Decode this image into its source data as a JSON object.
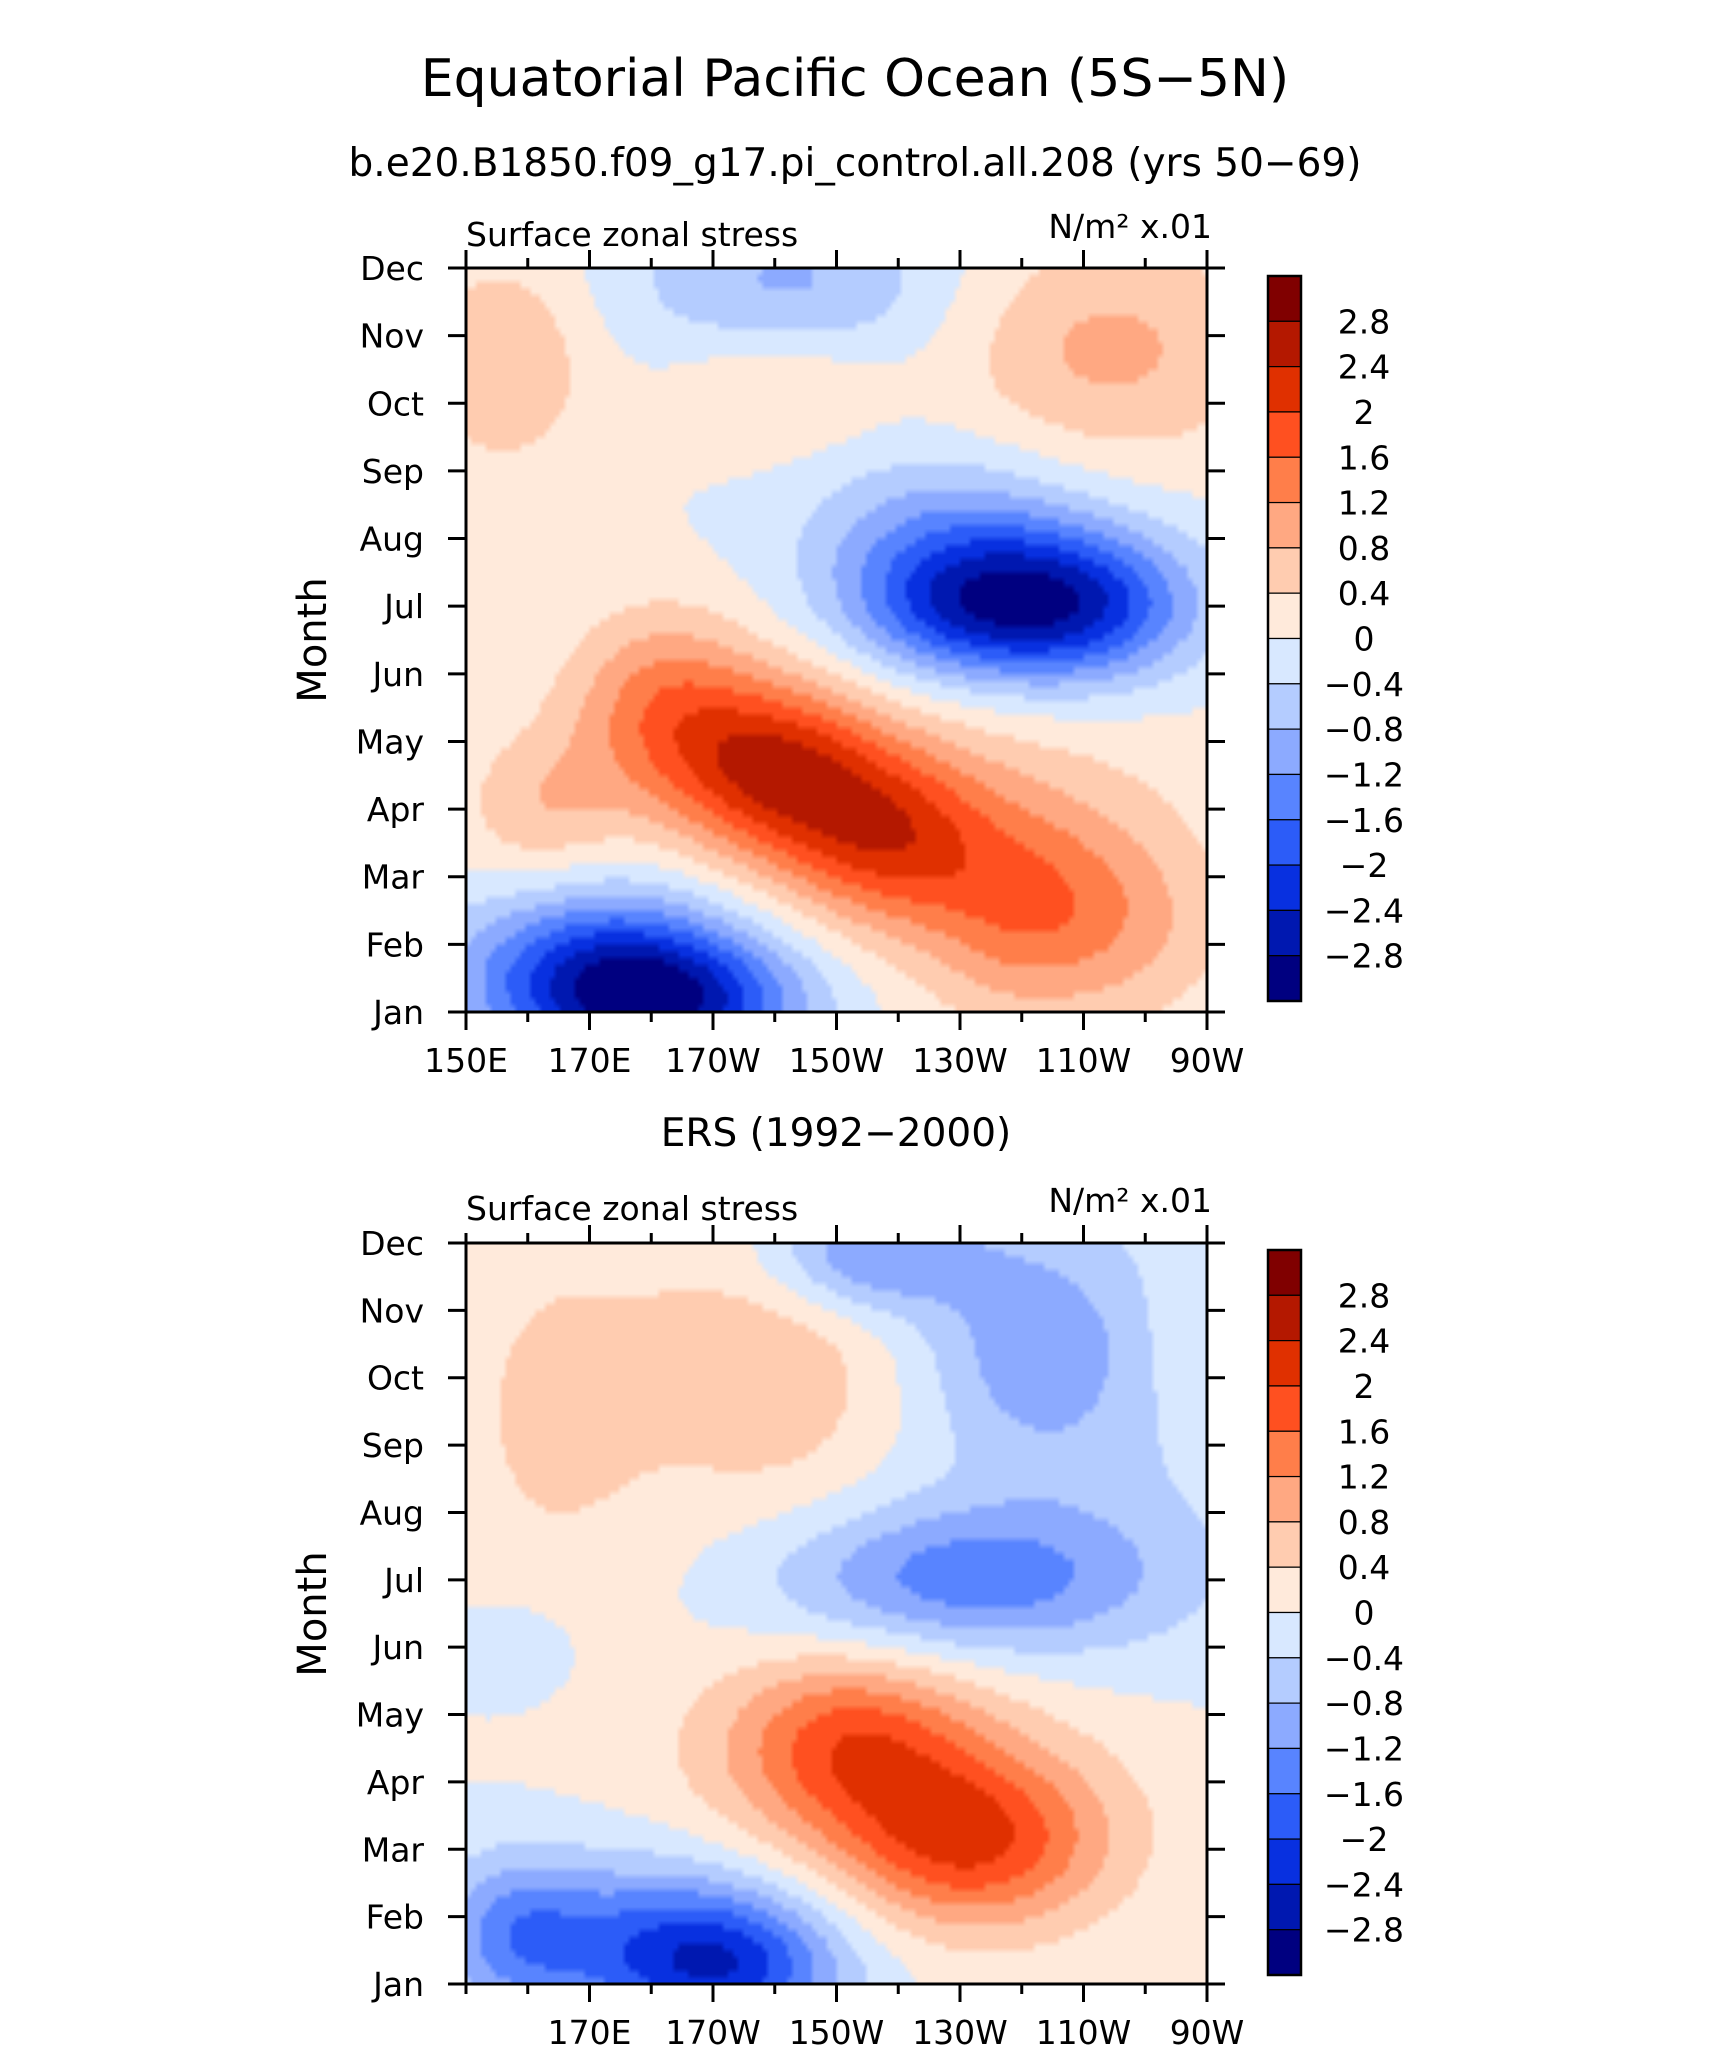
{
  "figure": {
    "title": "Equatorial Pacific Ocean (5S−5N)",
    "subtitle": "b.e20.B1850.f09_g17.pi_control.all.208 (yrs 50−69)"
  },
  "chart_data": [
    {
      "type": "heatmap",
      "title": "",
      "left_label": "Surface zonal stress",
      "units_label": "N/m² x.01",
      "xlabel": "",
      "ylabel": "Month",
      "x_tick_labels": [
        "150E",
        "170E",
        "170W",
        "150W",
        "130W",
        "110W",
        "90W"
      ],
      "x_tick_lons": [
        150,
        170,
        190,
        210,
        230,
        250,
        270
      ],
      "xlim": [
        150,
        270
      ],
      "y_tick_labels": [
        "Jan",
        "Feb",
        "Mar",
        "Apr",
        "May",
        "Jun",
        "Jul",
        "Aug",
        "Sep",
        "Oct",
        "Nov",
        "Dec"
      ],
      "ylim": [
        1,
        12
      ],
      "contour_levels": [
        -2.8,
        -2.4,
        -2,
        -1.6,
        -1.2,
        -0.8,
        -0.4,
        0,
        0.4,
        0.8,
        1.2,
        1.6,
        2,
        2.4,
        2.8
      ],
      "features": [
        {
          "lon": 172,
          "month": 1.5,
          "value": -2.3,
          "sx": 16,
          "sy": 0.9
        },
        {
          "lon": 186,
          "month": 1.1,
          "value": -1.6,
          "sx": 14,
          "sy": 0.7
        },
        {
          "lon": 162,
          "month": 4.0,
          "value": 0.7,
          "sx": 9,
          "sy": 0.8
        },
        {
          "lon": 182,
          "month": 5.5,
          "value": 1.3,
          "sx": 11,
          "sy": 1.0
        },
        {
          "lon": 200,
          "month": 4.6,
          "value": 2.0,
          "sx": 12,
          "sy": 0.9
        },
        {
          "lon": 218,
          "month": 3.6,
          "value": 1.7,
          "sx": 12,
          "sy": 0.9
        },
        {
          "lon": 242,
          "month": 2.5,
          "value": 1.4,
          "sx": 13,
          "sy": 1.1
        },
        {
          "lon": 262,
          "month": 2.2,
          "value": 0.4,
          "sx": 10,
          "sy": 1.0
        },
        {
          "lon": 228,
          "month": 7.8,
          "value": -1.2,
          "sx": 16,
          "sy": 1.0
        },
        {
          "lon": 248,
          "month": 7.0,
          "value": -2.3,
          "sx": 14,
          "sy": 0.8
        },
        {
          "lon": 228,
          "month": 6.9,
          "value": -1.0,
          "sx": 12,
          "sy": 0.7
        },
        {
          "lon": 202,
          "month": 11.7,
          "value": -0.9,
          "sx": 18,
          "sy": 0.9
        },
        {
          "lon": 156,
          "month": 10.6,
          "value": 0.8,
          "sx": 10,
          "sy": 1.1
        },
        {
          "lon": 254,
          "month": 10.8,
          "value": 0.9,
          "sx": 18,
          "sy": 1.2
        },
        {
          "lon": 200,
          "month": 10.3,
          "value": 0.6,
          "sx": 12,
          "sy": 0.7
        },
        {
          "lon": 230,
          "month": 4.2,
          "value": 0.4,
          "sx": 30,
          "sy": 1.5
        }
      ]
    },
    {
      "type": "heatmap",
      "title": "ERS (1992−2000)",
      "left_label": "Surface zonal stress",
      "units_label": "N/m² x.01",
      "xlabel": "",
      "ylabel": "Month",
      "x_tick_labels": [
        "170E",
        "170W",
        "150W",
        "130W",
        "110W",
        "90W"
      ],
      "x_tick_lons": [
        170,
        190,
        210,
        230,
        250,
        270
      ],
      "xlim": [
        150,
        270
      ],
      "y_tick_labels": [
        "Jan",
        "Feb",
        "Mar",
        "Apr",
        "May",
        "Jun",
        "Jul",
        "Aug",
        "Sep",
        "Oct",
        "Nov",
        "Dec"
      ],
      "ylim": [
        1,
        12
      ],
      "contour_levels": [
        -2.8,
        -2.4,
        -2,
        -1.6,
        -1.2,
        -0.8,
        -0.4,
        0,
        0.4,
        0.8,
        1.2,
        1.6,
        2,
        2.4,
        2.8
      ],
      "features": [
        {
          "lon": 180,
          "month": 1.6,
          "value": -1.6,
          "sx": 20,
          "sy": 0.9
        },
        {
          "lon": 193,
          "month": 1.2,
          "value": -1.3,
          "sx": 12,
          "sy": 0.7
        },
        {
          "lon": 158,
          "month": 1.8,
          "value": -0.8,
          "sx": 8,
          "sy": 0.8
        },
        {
          "lon": 158,
          "month": 6.0,
          "value": -0.3,
          "sx": 8,
          "sy": 0.6
        },
        {
          "lon": 212,
          "month": 4.6,
          "value": 1.4,
          "sx": 14,
          "sy": 0.9
        },
        {
          "lon": 232,
          "month": 3.1,
          "value": 1.7,
          "sx": 15,
          "sy": 0.9
        },
        {
          "lon": 222,
          "month": 3.9,
          "value": 0.6,
          "sx": 26,
          "sy": 1.4
        },
        {
          "lon": 165,
          "month": 9.5,
          "value": 0.5,
          "sx": 14,
          "sy": 2.2
        },
        {
          "lon": 200,
          "month": 10.2,
          "value": 0.7,
          "sx": 14,
          "sy": 1.6
        },
        {
          "lon": 230,
          "month": 7.0,
          "value": -1.4,
          "sx": 22,
          "sy": 0.8
        },
        {
          "lon": 215,
          "month": 11.8,
          "value": -1.3,
          "sx": 12,
          "sy": 0.6
        },
        {
          "lon": 241,
          "month": 10.5,
          "value": -0.8,
          "sx": 12,
          "sy": 1.2
        },
        {
          "lon": 255,
          "month": 9.5,
          "value": -0.4,
          "sx": 20,
          "sy": 2.5
        },
        {
          "lon": 268,
          "month": 10.5,
          "value": 0.3,
          "sx": 6,
          "sy": 1.0
        }
      ]
    }
  ],
  "colorbar": {
    "labels": [
      "2.8",
      "2.4",
      "2",
      "1.6",
      "1.2",
      "0.8",
      "0.4",
      "0",
      "−0.4",
      "−0.8",
      "−1.2",
      "−1.6",
      "−2",
      "−2.4",
      "−2.8"
    ],
    "colors": [
      "#800000",
      "#b41800",
      "#e03000",
      "#ff5020",
      "#ff7e4a",
      "#ffa882",
      "#ffccb0",
      "#ffeadb",
      "#d8e8ff",
      "#b4ccff",
      "#8caaff",
      "#5884ff",
      "#2c5cf8",
      "#0830e0",
      "#0018b0",
      "#000080"
    ]
  }
}
